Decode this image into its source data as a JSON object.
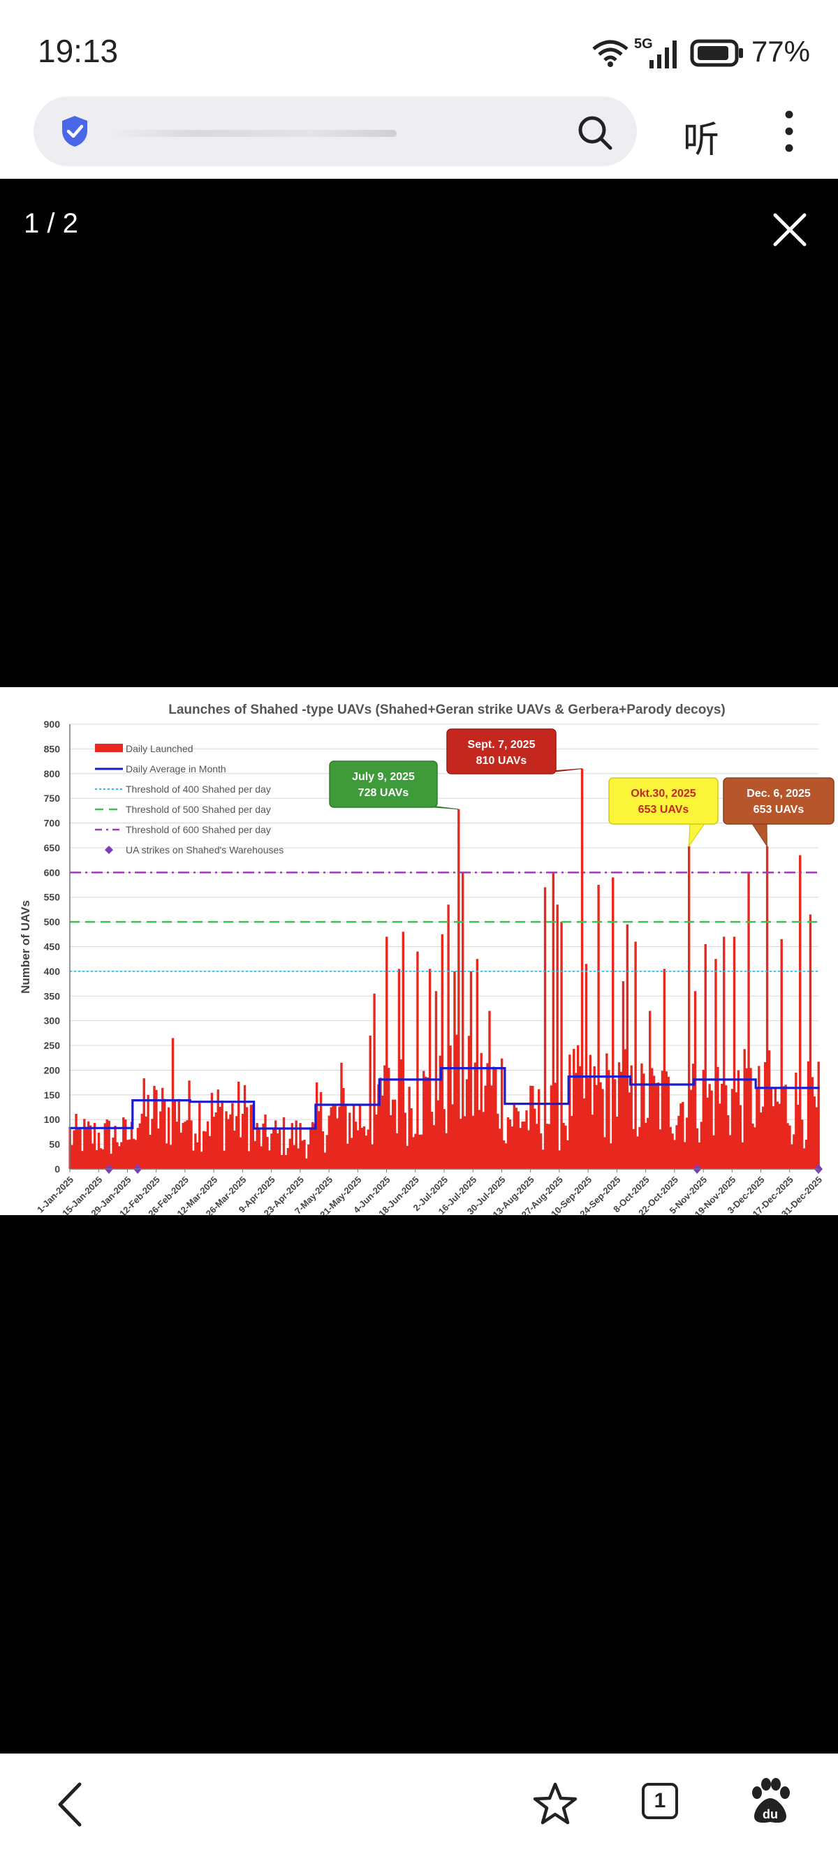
{
  "status_bar": {
    "time": "19:13",
    "network": "5G",
    "battery": "77%"
  },
  "browser": {
    "url_placeholder": "",
    "listen_label": "听",
    "tab_count": "1"
  },
  "viewer": {
    "counter": "1 / 2"
  },
  "colors": {
    "bar_red": "#e8281e",
    "avg_blue": "#1b1bd0",
    "grid": "#d8d8d8"
  },
  "chart_data": {
    "type": "bar",
    "title": "Launches of Shahed -type UAVs (Shahed+Geran strike UAVs & Gerbera+Parody decoys)",
    "ylabel": "Number of UAVs",
    "xlabel": "",
    "ylim": [
      0,
      900
    ],
    "yticks": [
      0,
      50,
      100,
      150,
      200,
      250,
      300,
      350,
      400,
      450,
      500,
      550,
      600,
      650,
      700,
      750,
      800,
      850,
      900
    ],
    "xticks": [
      "1-Jan-2025",
      "15-Jan-2025",
      "29-Jan-2025",
      "12-Feb-2025",
      "26-Feb-2025",
      "12-Mar-2025",
      "26-Mar-2025",
      "9-Apr-2025",
      "23-Apr-2025",
      "7-May-2025",
      "21-May-2025",
      "4-Jun-2025",
      "18-Jun-2025",
      "2-Jul-2025",
      "16-Jul-2025",
      "30-Jul-2025",
      "13-Aug-2025",
      "27-Aug-2025",
      "10-Sep-2025",
      "24-Sep-2025",
      "8-Oct-2025",
      "22-Oct-2025",
      "5-Nov-2025",
      "19-Nov-2025",
      "3-Dec-2025",
      "17-Dec-2025",
      "31-Dec-2025"
    ],
    "legend": [
      "Daily Launched",
      "Daily Average in Month",
      "Threshold of 400 Shahed per day",
      "Threshold of 500 Shahed per day",
      "Threshold of 600 Shahed per day",
      "UA strikes on Shahed's Warehouses"
    ],
    "thresholds": [
      400,
      500,
      600
    ],
    "monthly_average": [
      {
        "month": "Jan",
        "start_day": 1,
        "end_day": 31,
        "value": 83
      },
      {
        "month": "Feb",
        "start_day": 32,
        "end_day": 59,
        "value": 139
      },
      {
        "month": "Mar",
        "start_day": 60,
        "end_day": 90,
        "value": 136
      },
      {
        "month": "Apr",
        "start_day": 91,
        "end_day": 120,
        "value": 82
      },
      {
        "month": "May",
        "start_day": 121,
        "end_day": 151,
        "value": 130
      },
      {
        "month": "Jun",
        "start_day": 152,
        "end_day": 181,
        "value": 181
      },
      {
        "month": "Jul",
        "start_day": 182,
        "end_day": 212,
        "value": 204
      },
      {
        "month": "Aug",
        "start_day": 213,
        "end_day": 243,
        "value": 132
      },
      {
        "month": "Sep",
        "start_day": 244,
        "end_day": 273,
        "value": 187
      },
      {
        "month": "Oct",
        "start_day": 274,
        "end_day": 304,
        "value": 171
      },
      {
        "month": "Nov",
        "start_day": 305,
        "end_day": 334,
        "value": 181
      },
      {
        "month": "Dec",
        "start_day": 335,
        "end_day": 365,
        "value": 164
      }
    ],
    "spikes": [
      {
        "day": 51,
        "value": 265
      },
      {
        "day": 133,
        "value": 215
      },
      {
        "day": 147,
        "value": 270
      },
      {
        "day": 149,
        "value": 355
      },
      {
        "day": 155,
        "value": 470
      },
      {
        "day": 161,
        "value": 405
      },
      {
        "day": 163,
        "value": 480
      },
      {
        "day": 170,
        "value": 440
      },
      {
        "day": 176,
        "value": 405
      },
      {
        "day": 179,
        "value": 360
      },
      {
        "day": 182,
        "value": 475
      },
      {
        "day": 185,
        "value": 535
      },
      {
        "day": 188,
        "value": 400
      },
      {
        "day": 190,
        "value": 728
      },
      {
        "day": 192,
        "value": 600
      },
      {
        "day": 196,
        "value": 400
      },
      {
        "day": 199,
        "value": 425
      },
      {
        "day": 205,
        "value": 320
      },
      {
        "day": 232,
        "value": 570
      },
      {
        "day": 236,
        "value": 600
      },
      {
        "day": 238,
        "value": 535
      },
      {
        "day": 240,
        "value": 500
      },
      {
        "day": 250,
        "value": 810
      },
      {
        "day": 252,
        "value": 415
      },
      {
        "day": 258,
        "value": 575
      },
      {
        "day": 265,
        "value": 590
      },
      {
        "day": 270,
        "value": 380
      },
      {
        "day": 272,
        "value": 495
      },
      {
        "day": 276,
        "value": 460
      },
      {
        "day": 283,
        "value": 320
      },
      {
        "day": 290,
        "value": 405
      },
      {
        "day": 302,
        "value": 653
      },
      {
        "day": 305,
        "value": 360
      },
      {
        "day": 310,
        "value": 455
      },
      {
        "day": 315,
        "value": 425
      },
      {
        "day": 319,
        "value": 470
      },
      {
        "day": 324,
        "value": 470
      },
      {
        "day": 331,
        "value": 600
      },
      {
        "day": 340,
        "value": 653
      },
      {
        "day": 341,
        "value": 240
      },
      {
        "day": 347,
        "value": 465
      },
      {
        "day": 356,
        "value": 635
      },
      {
        "day": 361,
        "value": 515
      },
      {
        "day": 364,
        "value": 125
      }
    ],
    "strike_markers": [
      {
        "day": 20
      },
      {
        "day": 34
      },
      {
        "day": 306
      },
      {
        "day": 365
      }
    ],
    "annotations": [
      {
        "line1": "July 9, 2025",
        "line2": "728 UAVs",
        "day": 190,
        "value": 728,
        "color": "green"
      },
      {
        "line1": "Sept. 7, 2025",
        "line2": "810 UAVs",
        "day": 250,
        "value": 810,
        "color": "red"
      },
      {
        "line1": "Okt.30, 2025",
        "line2": "653 UAVs",
        "day": 302,
        "value": 653,
        "color": "yellow"
      },
      {
        "line1": "Dec. 6, 2025",
        "line2": "653 UAVs",
        "day": 340,
        "value": 653,
        "color": "brown"
      }
    ]
  }
}
